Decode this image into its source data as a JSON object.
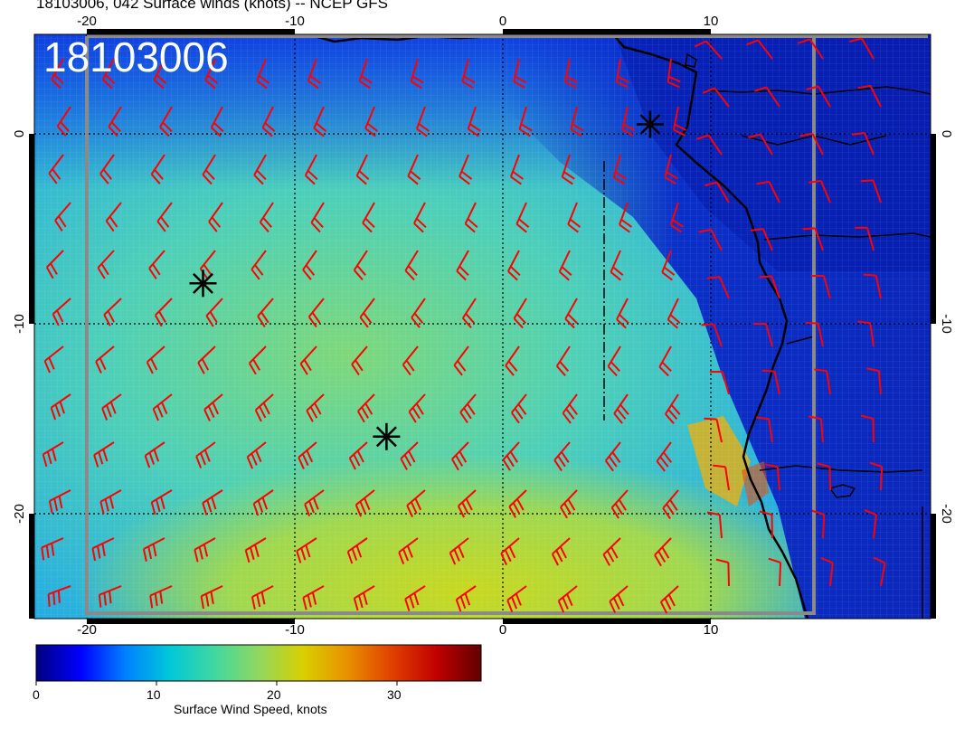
{
  "title": "18103006, 042 Surface winds (knots) -- NCEP GFS",
  "stamp": "18103006",
  "axes": {
    "lon_ticks": [
      "-20",
      "-10",
      "0",
      "10"
    ],
    "lat_ticks": [
      "0",
      "-10",
      "-20"
    ]
  },
  "colorbar": {
    "label": "Surface Wind Speed, knots",
    "ticks": [
      "0",
      "10",
      "20",
      "30"
    ],
    "range": [
      0,
      37
    ],
    "colors": [
      "#000080",
      "#0000ff",
      "#0080ff",
      "#00c8d8",
      "#40d8a0",
      "#90d860",
      "#d8d000",
      "#e89000",
      "#e04000",
      "#c00000",
      "#600000"
    ]
  },
  "map": {
    "lon_range": [
      -22.5,
      20
    ],
    "lat_range": [
      -25.5,
      5
    ],
    "barb_color": "#ff0000",
    "marker_color": "#000000",
    "storm_markers": [
      {
        "lon": -14.5,
        "lat": -8
      },
      {
        "lon": -5.8,
        "lat": -16
      },
      {
        "lon": 6.7,
        "lat": 0.3
      }
    ]
  }
}
